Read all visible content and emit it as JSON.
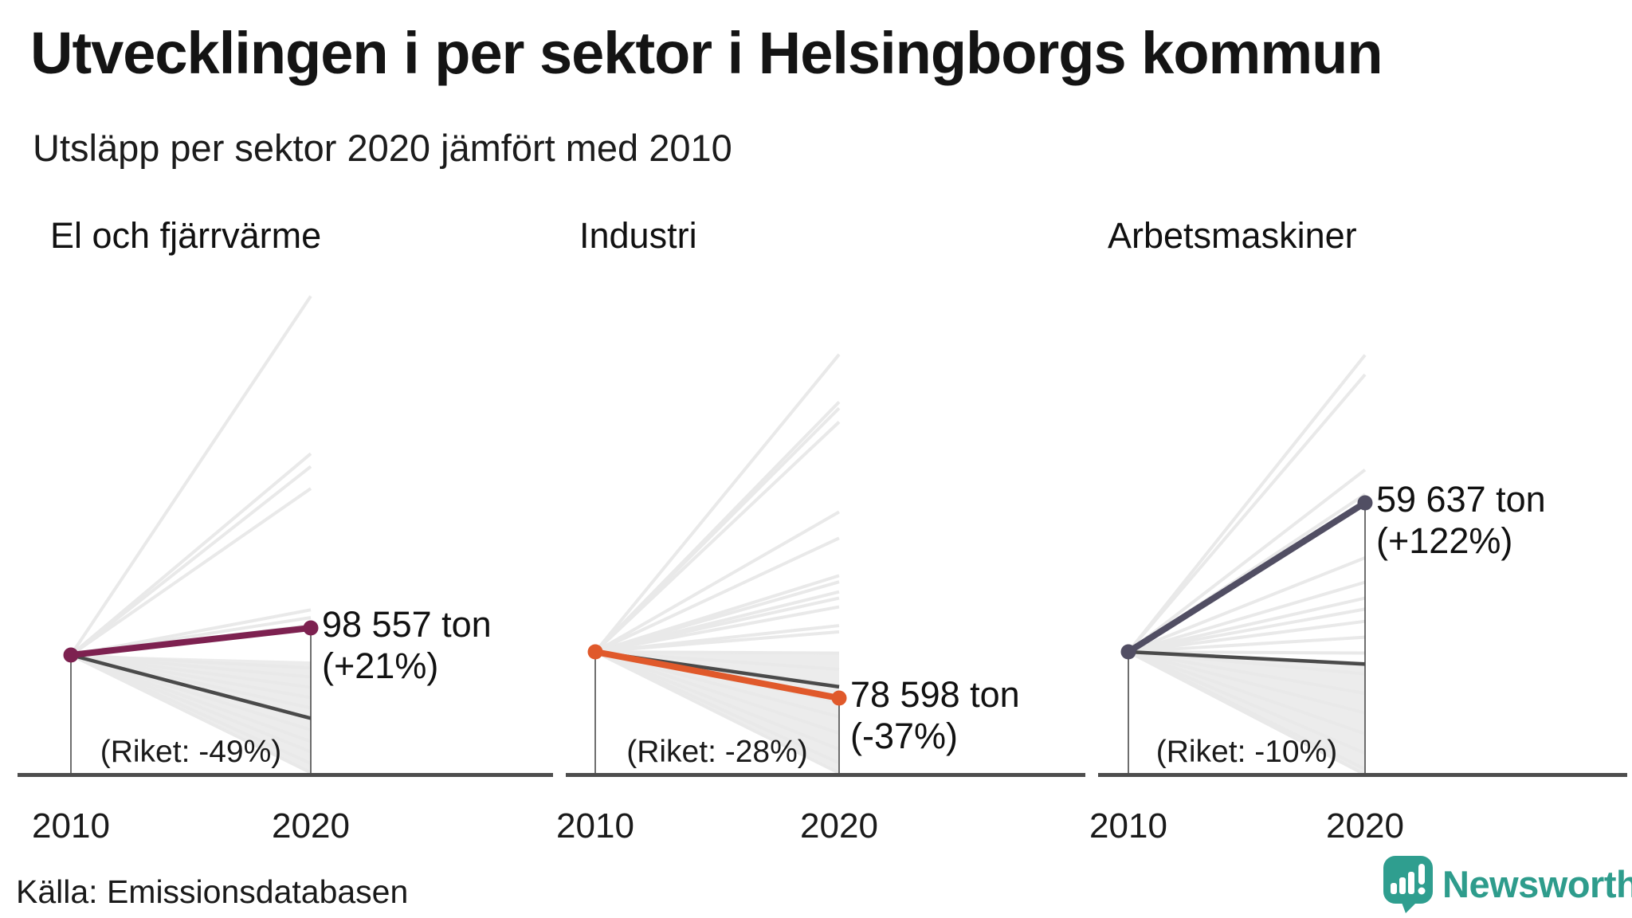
{
  "header": {
    "title": "Utvecklingen i per sektor i Helsingborgs kommun",
    "subtitle": "Utsläpp per sektor 2020 jämfört med 2010"
  },
  "footer": {
    "source": "Källa: Emissionsdatabasen",
    "brand": "Newsworthy"
  },
  "colors": {
    "highlight1": "#7d2150",
    "highlight2": "#e0592b",
    "highlight3": "#514e63",
    "riket": "#4a4a4a",
    "fan": "#e9e9e9",
    "wedge": "#ececec",
    "axis": "#4d4d4d",
    "dropline": "#4a4a4a",
    "brand": "#2e9c8c"
  },
  "chart_data": [
    {
      "type": "line",
      "title": "El och fjärrvärme",
      "categories": [
        "2010",
        "2020"
      ],
      "color": "#7d2150",
      "series": [
        {
          "name": "Helsingborgs kommun",
          "end_value_label": "98 557 ton",
          "change_label": "(+21%)",
          "change_pct": 21
        },
        {
          "name": "Riket",
          "label": "(Riket: -49%)",
          "change_pct": -49
        }
      ],
      "background_changes_pct": [
        278,
        156,
        146,
        129,
        35,
        29,
        23,
        -10,
        -17,
        -25,
        -33,
        -41,
        -58,
        -67,
        -75,
        -84,
        -91
      ],
      "wedge_pct": [
        -5,
        -93
      ]
    },
    {
      "type": "line",
      "title": "Industri",
      "categories": [
        "2010",
        "2020"
      ],
      "color": "#e0592b",
      "series": [
        {
          "name": "Helsingborgs kommun",
          "end_value_label": "78 598 ton",
          "change_label": "(-37%)",
          "change_pct": -37
        },
        {
          "name": "Riket",
          "label": "(Riket: -28%)",
          "change_pct": -28
        }
      ],
      "background_changes_pct": [
        238,
        200,
        195,
        184,
        112,
        91,
        61,
        56,
        48,
        43,
        36,
        21,
        16,
        -1,
        -14,
        -27,
        -40,
        -52,
        -65,
        -78,
        -89,
        -97
      ],
      "wedge_pct": [
        -2,
        -98
      ]
    },
    {
      "type": "line",
      "title": "Arbetsmaskiner",
      "categories": [
        "2010",
        "2020"
      ],
      "color": "#514e63",
      "series": [
        {
          "name": "Helsingborgs kommun",
          "end_value_label": "59 637 ton",
          "change_label": "(+122%)",
          "change_pct": 122
        },
        {
          "name": "Riket",
          "label": "(Riket: -10%)",
          "change_pct": -10
        }
      ],
      "background_changes_pct": [
        243,
        227,
        149,
        129,
        77,
        57,
        44,
        35,
        25,
        12,
        -1,
        -18,
        -34,
        -50,
        -67,
        -83,
        -96,
        -109
      ],
      "wedge_pct": [
        -8,
        -105
      ]
    }
  ]
}
